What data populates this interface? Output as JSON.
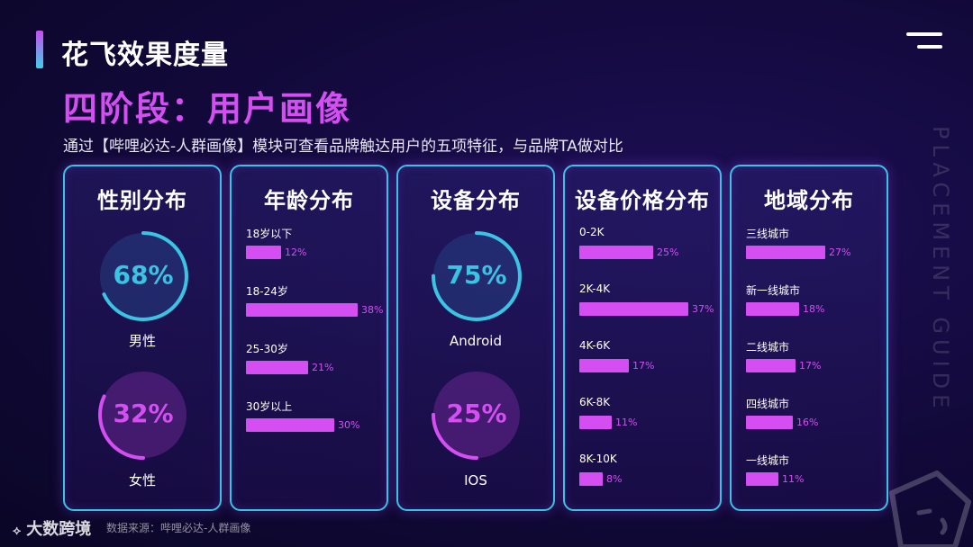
{
  "header": {
    "title": "花飞效果度量",
    "subtitle": "四阶段：用户画像",
    "description": "通过【哔哩必达-人群画像】模块可查看品牌触达用户的五项特征，与品牌TA做对比"
  },
  "side_text": "PLACEMENT GUIDE",
  "footer": {
    "logo": "大数跨境",
    "source": "数据来源：哔哩必达-人群画像"
  },
  "colors": {
    "accent_pink": "#d44ef2",
    "accent_cyan": "#3bc3e4"
  },
  "panels": {
    "gender": {
      "title": "性别分布",
      "items": [
        {
          "label": "男性",
          "value": "68%",
          "fraction": 0.68,
          "color": "#3bc3e4"
        },
        {
          "label": "女性",
          "value": "32%",
          "fraction": 0.32,
          "color": "#d44ef2"
        }
      ]
    },
    "age": {
      "title": "年龄分布",
      "items": [
        {
          "label": "18岁以下",
          "value": "12%",
          "percent": 12
        },
        {
          "label": "18-24岁",
          "value": "38%",
          "percent": 38
        },
        {
          "label": "25-30岁",
          "value": "21%",
          "percent": 21
        },
        {
          "label": "30岁以上",
          "value": "30%",
          "percent": 30
        }
      ]
    },
    "device": {
      "title": "设备分布",
      "items": [
        {
          "label": "Android",
          "value": "75%",
          "fraction": 0.75,
          "color": "#3bc3e4"
        },
        {
          "label": "IOS",
          "value": "25%",
          "fraction": 0.25,
          "color": "#d44ef2"
        }
      ]
    },
    "price": {
      "title": "设备价格分布",
      "items": [
        {
          "label": "0-2K",
          "value": "25%",
          "percent": 25
        },
        {
          "label": "2K-4K",
          "value": "37%",
          "percent": 37
        },
        {
          "label": "4K-6K",
          "value": "17%",
          "percent": 17
        },
        {
          "label": "6K-8K",
          "value": "11%",
          "percent": 11
        },
        {
          "label": "8K-10K",
          "value": "8%",
          "percent": 8
        }
      ]
    },
    "region": {
      "title": "地域分布",
      "items": [
        {
          "label": "三线城市",
          "value": "27%",
          "percent": 27
        },
        {
          "label": "新一线城市",
          "value": "18%",
          "percent": 18
        },
        {
          "label": "二线城市",
          "value": "17%",
          "percent": 17
        },
        {
          "label": "四线城市",
          "value": "16%",
          "percent": 16
        },
        {
          "label": "一线城市",
          "value": "11%",
          "percent": 11
        }
      ]
    }
  }
}
